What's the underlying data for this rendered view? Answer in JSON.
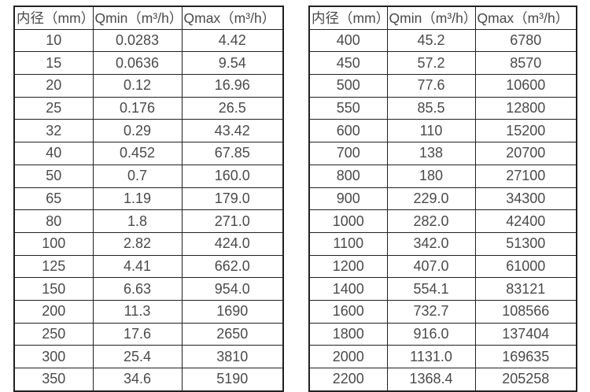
{
  "colors": {
    "background": "#ffffff",
    "table_border": "#212121",
    "text": "#4a4a4a"
  },
  "chart_data": [
    {
      "type": "table",
      "title": "",
      "columns": [
        "内径（mm）",
        "Qmin（m³/h）",
        "Qmax（m³/h）"
      ],
      "rows": [
        [
          "10",
          "0.0283",
          "4.42"
        ],
        [
          "15",
          "0.0636",
          "9.54"
        ],
        [
          "20",
          "0.12",
          "16.96"
        ],
        [
          "25",
          "0.176",
          "26.5"
        ],
        [
          "32",
          "0.29",
          "43.42"
        ],
        [
          "40",
          "0.452",
          "67.85"
        ],
        [
          "50",
          "0.7",
          "160.0"
        ],
        [
          "65",
          "1.19",
          "179.0"
        ],
        [
          "80",
          "1.8",
          "271.0"
        ],
        [
          "100",
          "2.82",
          "424.0"
        ],
        [
          "125",
          "4.41",
          "662.0"
        ],
        [
          "150",
          "6.63",
          "954.0"
        ],
        [
          "200",
          "11.3",
          "1690"
        ],
        [
          "250",
          "17.6",
          "2650"
        ],
        [
          "300",
          "25.4",
          "3810"
        ],
        [
          "350",
          "34.6",
          "5190"
        ]
      ]
    },
    {
      "type": "table",
      "title": "",
      "columns": [
        "内径（mm）",
        "Qmin（m³/h）",
        "Qmax（m³/h）"
      ],
      "rows": [
        [
          "400",
          "45.2",
          "6780"
        ],
        [
          "450",
          "57.2",
          "8570"
        ],
        [
          "500",
          "77.6",
          "10600"
        ],
        [
          "550",
          "85.5",
          "12800"
        ],
        [
          "600",
          "110",
          "15200"
        ],
        [
          "700",
          "138",
          "20700"
        ],
        [
          "800",
          "180",
          "27100"
        ],
        [
          "900",
          "229.0",
          "34300"
        ],
        [
          "1000",
          "282.0",
          "42400"
        ],
        [
          "1100",
          "342.0",
          "51300"
        ],
        [
          "1200",
          "407.0",
          "61000"
        ],
        [
          "1400",
          "554.1",
          "83121"
        ],
        [
          "1600",
          "732.7",
          "108566"
        ],
        [
          "1800",
          "916.0",
          "137404"
        ],
        [
          "2000",
          "1131.0",
          "169635"
        ],
        [
          "2200",
          "1368.4",
          "205258"
        ]
      ]
    }
  ]
}
